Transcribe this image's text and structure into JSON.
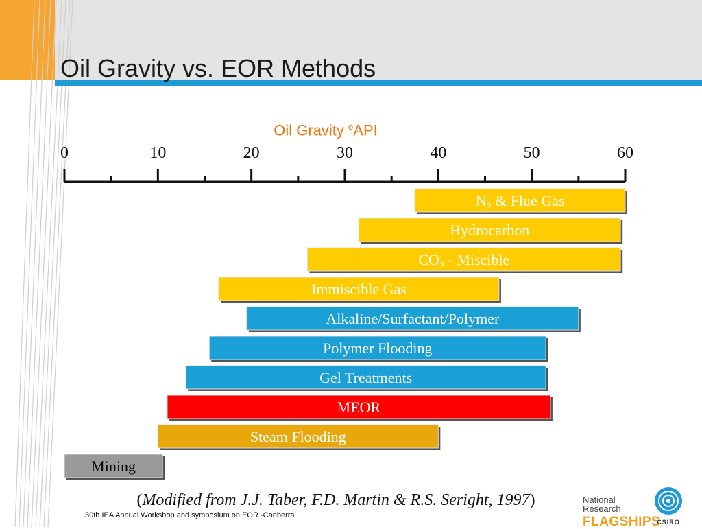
{
  "slide": {
    "title": "Oil Gravity vs. EOR Methods",
    "citation_open": "(",
    "citation_text": "Modified from J.J. Taber, F.D. Martin & R.S. Seright, 1997",
    "citation_close": ")",
    "footer": "30th IEA Annual Workshop and symposium on EOR -Canberra",
    "logo_line1": "National Research",
    "logo_line2": "FLAGSHIPS",
    "logo_csiro": "CSIRO"
  },
  "colors": {
    "orange_accent": "#f6a531",
    "blue_rule": "#1e9bd7",
    "gas_bar": "#ffcc00",
    "chemical_bar": "#1a9fd6",
    "meor_bar": "#ff0000",
    "steam_bar": "#e8a80c",
    "mining_bar": "#9a9a9a",
    "axis_title": "#f0730a"
  },
  "chart_data": {
    "type": "bar",
    "orientation": "horizontal-range",
    "axis_title_prefix": "Oil Gravity ",
    "axis_title_sup": "o",
    "axis_title_suffix": "API",
    "xlim": [
      0,
      60
    ],
    "ticks": [
      0,
      10,
      20,
      30,
      40,
      50,
      60
    ],
    "minor_ticks": [
      5,
      15,
      25,
      35,
      45,
      55
    ],
    "bars": [
      {
        "label": "N",
        "label_sub": "2",
        "label_rest": " & Flue Gas",
        "start": 37.5,
        "end": 60,
        "color": "#ffcc00",
        "text_color": "#ffffff"
      },
      {
        "label": "Hydrocarbon",
        "start": 31.5,
        "end": 59.5,
        "color": "#ffcc00",
        "text_color": "#ffffff"
      },
      {
        "label": "CO",
        "label_sub": "2",
        "label_rest": " - Miscible",
        "start": 26,
        "end": 59.5,
        "color": "#ffcc00",
        "text_color": "#ffffff"
      },
      {
        "label": "Immiscible Gas",
        "start": 16.5,
        "end": 46.5,
        "color": "#ffcc00",
        "text_color": "#ffffff"
      },
      {
        "label": "Alkaline/Surfactant/Polymer",
        "start": 19.5,
        "end": 55,
        "color": "#1a9fd6",
        "text_color": "#ffffff"
      },
      {
        "label": "Polymer Flooding",
        "start": 15.5,
        "end": 51.5,
        "color": "#1a9fd6",
        "text_color": "#ffffff"
      },
      {
        "label": "Gel Treatments",
        "start": 13,
        "end": 51.5,
        "color": "#1a9fd6",
        "text_color": "#ffffff"
      },
      {
        "label": "MEOR",
        "start": 11,
        "end": 52,
        "color": "#ff0000",
        "text_color": "#ffffff"
      },
      {
        "label": "Steam Flooding",
        "start": 10,
        "end": 40,
        "color": "#e8a80c",
        "text_color": "#ffffff"
      },
      {
        "label": "Mining",
        "start": 0,
        "end": 10.5,
        "color": "#9a9a9a",
        "text_color": "#000000"
      }
    ]
  }
}
